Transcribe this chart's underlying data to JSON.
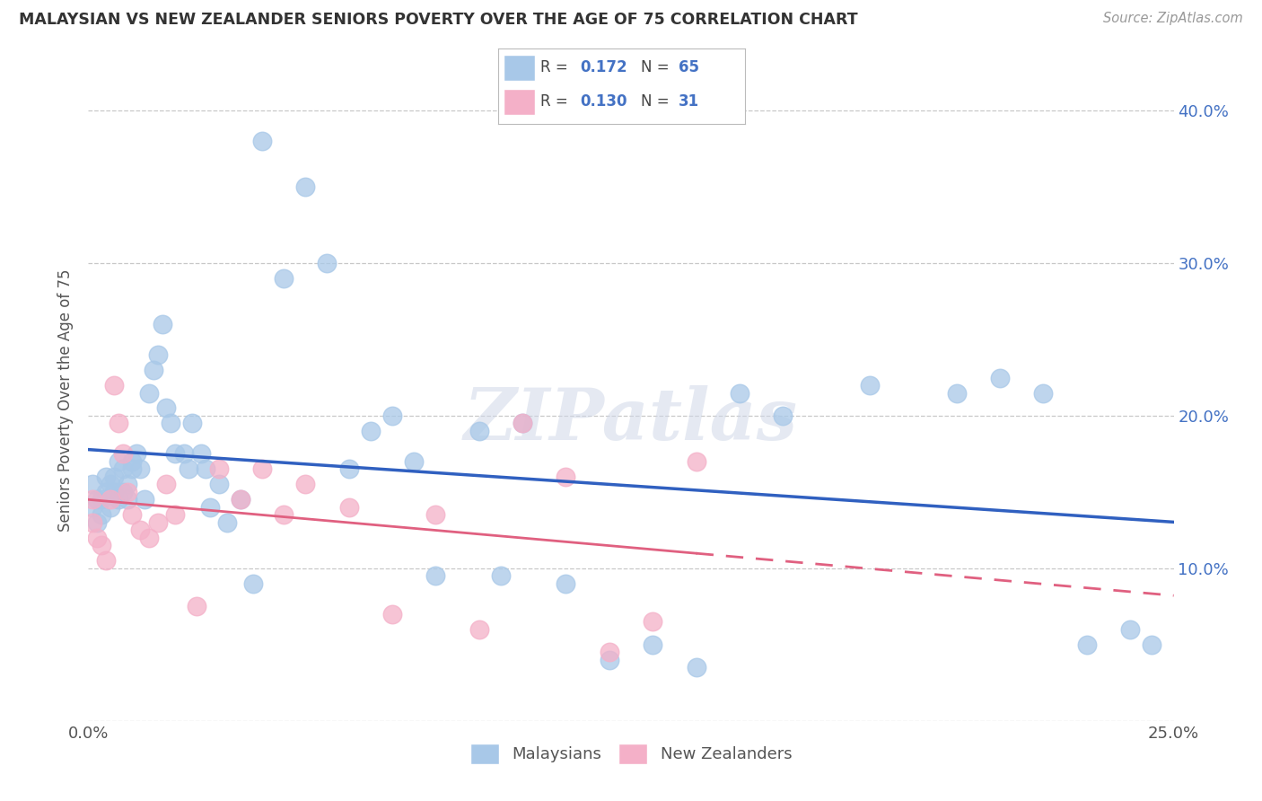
{
  "title": "MALAYSIAN VS NEW ZEALANDER SENIORS POVERTY OVER THE AGE OF 75 CORRELATION CHART",
  "source": "Source: ZipAtlas.com",
  "ylabel": "Seniors Poverty Over the Age of 75",
  "xlim": [
    0.0,
    0.25
  ],
  "ylim": [
    0.0,
    0.42
  ],
  "R_malaysian": 0.172,
  "N_malaysian": 65,
  "R_nz": 0.13,
  "N_nz": 31,
  "malaysian_color": "#a8c8e8",
  "nz_color": "#f4b0c8",
  "malaysian_line_color": "#3060c0",
  "nz_line_color": "#e06080",
  "legend_R_color": "#4472c4",
  "watermark": "ZIPatlas",
  "background_color": "#ffffff",
  "grid_color": "#c8c8c8",
  "malaysian_x": [
    0.001,
    0.001,
    0.002,
    0.002,
    0.003,
    0.003,
    0.004,
    0.004,
    0.005,
    0.005,
    0.006,
    0.006,
    0.007,
    0.007,
    0.008,
    0.008,
    0.009,
    0.009,
    0.01,
    0.01,
    0.011,
    0.012,
    0.013,
    0.014,
    0.015,
    0.016,
    0.017,
    0.018,
    0.019,
    0.02,
    0.022,
    0.023,
    0.024,
    0.026,
    0.027,
    0.028,
    0.03,
    0.032,
    0.035,
    0.038,
    0.04,
    0.045,
    0.05,
    0.055,
    0.06,
    0.065,
    0.07,
    0.075,
    0.08,
    0.09,
    0.095,
    0.1,
    0.11,
    0.12,
    0.13,
    0.14,
    0.15,
    0.16,
    0.18,
    0.2,
    0.21,
    0.22,
    0.23,
    0.24,
    0.245
  ],
  "malaysian_y": [
    0.155,
    0.14,
    0.145,
    0.13,
    0.145,
    0.135,
    0.16,
    0.15,
    0.155,
    0.14,
    0.16,
    0.15,
    0.17,
    0.145,
    0.165,
    0.15,
    0.155,
    0.145,
    0.17,
    0.165,
    0.175,
    0.165,
    0.145,
    0.215,
    0.23,
    0.24,
    0.26,
    0.205,
    0.195,
    0.175,
    0.175,
    0.165,
    0.195,
    0.175,
    0.165,
    0.14,
    0.155,
    0.13,
    0.145,
    0.09,
    0.38,
    0.29,
    0.35,
    0.3,
    0.165,
    0.19,
    0.2,
    0.17,
    0.095,
    0.19,
    0.095,
    0.195,
    0.09,
    0.04,
    0.05,
    0.035,
    0.215,
    0.2,
    0.22,
    0.215,
    0.225,
    0.215,
    0.05,
    0.06,
    0.05
  ],
  "nz_x": [
    0.001,
    0.001,
    0.002,
    0.003,
    0.004,
    0.005,
    0.006,
    0.007,
    0.008,
    0.009,
    0.01,
    0.012,
    0.014,
    0.016,
    0.018,
    0.02,
    0.025,
    0.03,
    0.035,
    0.04,
    0.045,
    0.05,
    0.06,
    0.07,
    0.08,
    0.09,
    0.1,
    0.11,
    0.12,
    0.13,
    0.14
  ],
  "nz_y": [
    0.145,
    0.13,
    0.12,
    0.115,
    0.105,
    0.145,
    0.22,
    0.195,
    0.175,
    0.15,
    0.135,
    0.125,
    0.12,
    0.13,
    0.155,
    0.135,
    0.075,
    0.165,
    0.145,
    0.165,
    0.135,
    0.155,
    0.14,
    0.07,
    0.135,
    0.06,
    0.195,
    0.16,
    0.045,
    0.065,
    0.17
  ]
}
